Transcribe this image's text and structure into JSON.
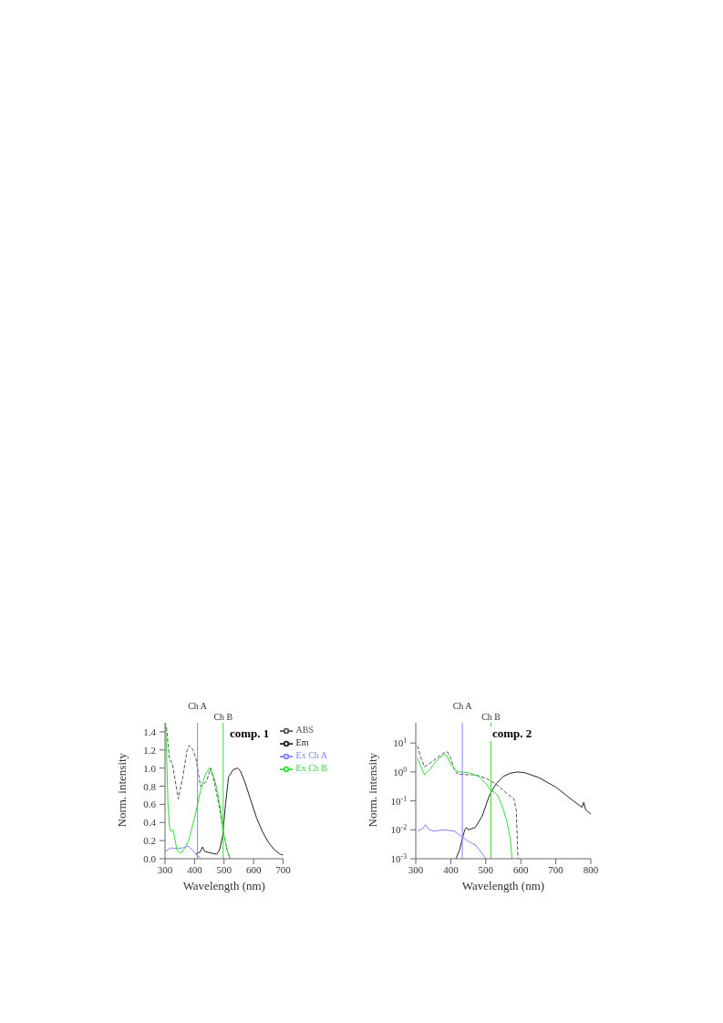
{
  "chart_data": [
    {
      "type": "line",
      "title": "comp. 1",
      "xlabel": "Wavelength (nm)",
      "ylabel": "Norm. intensity",
      "xlim": [
        300,
        700
      ],
      "xticks": [
        300,
        400,
        500,
        600,
        700
      ],
      "ylim": [
        0,
        1.5
      ],
      "yticks": [
        {
          "value": 0,
          "label": "0.0"
        },
        0.2,
        0.4,
        0.6,
        0.8,
        {
          "value": 1,
          "label": "1.0"
        },
        1.2,
        1.4
      ],
      "grid": false,
      "legend": "top right",
      "marker": "none",
      "series": [
        {
          "name": "ABS",
          "color": "#555555",
          "line_style": "dashed",
          "x": [
            305,
            315,
            325,
            345,
            360,
            375,
            382,
            395,
            405,
            420,
            440,
            455,
            470,
            485,
            497,
            510,
            520
          ],
          "values": [
            1.45,
            1.1,
            1.05,
            0.66,
            0.9,
            1.2,
            1.25,
            1.2,
            1.1,
            0.8,
            0.85,
            1.0,
            0.8,
            0.55,
            0.3,
            0.1,
            0
          ]
        },
        {
          "name": "Em",
          "color": "#222222",
          "line_style": "solid",
          "x": [
            405,
            420,
            427,
            435,
            460,
            475,
            485,
            495,
            505,
            515,
            530,
            545,
            555,
            570,
            590,
            610,
            630,
            650,
            670,
            690,
            700
          ],
          "values": [
            0.05,
            0.08,
            0.13,
            0.08,
            0.06,
            0.05,
            0.1,
            0.25,
            0.6,
            0.9,
            0.98,
            1.0,
            0.97,
            0.85,
            0.65,
            0.45,
            0.3,
            0.18,
            0.1,
            0.05,
            0.04
          ]
        },
        {
          "name": "Ex Ch A",
          "color": "#8080ff",
          "line_style": "solid",
          "x": [
            300,
            310,
            320,
            340,
            360,
            378,
            385,
            400,
            410,
            420
          ],
          "values": [
            0.08,
            0.1,
            0.12,
            0.11,
            0.12,
            0.14,
            0.12,
            0.07,
            0.03,
            0.01
          ]
        },
        {
          "name": "Ex Ch B",
          "color": "#33dd33",
          "line_style": "solid",
          "x": [
            302,
            305,
            310,
            315,
            320,
            326,
            330,
            340,
            350,
            360,
            380,
            400,
            420,
            435,
            450,
            460,
            470,
            480,
            490,
            500,
            510,
            520
          ],
          "values": [
            1.5,
            1.2,
            0.6,
            0.35,
            0.3,
            0.32,
            0.28,
            0.1,
            0.06,
            0.08,
            0.2,
            0.45,
            0.75,
            0.92,
            1.0,
            0.95,
            0.85,
            0.7,
            0.5,
            0.25,
            0.1,
            0.0
          ]
        }
      ],
      "ref_lines": [
        {
          "axis": "x",
          "value": 410,
          "label": "Ch A",
          "color": "#8080ff"
        },
        {
          "axis": "x",
          "value": 497,
          "label": "Ch B",
          "color": "#33dd33"
        }
      ]
    },
    {
      "type": "line",
      "title": "comp. 2",
      "xlabel": "Wavelength (nm)",
      "ylabel": "Norm. intensity",
      "xlim": [
        300,
        800
      ],
      "xticks": [
        300,
        400,
        500,
        600,
        700,
        800
      ],
      "ylim": [
        0.001,
        50
      ],
      "log": "y",
      "yticks": [
        {
          "value": 0.001,
          "label": "10$^{-3}$"
        },
        {
          "value": 0.01,
          "label": "10$^{-2}$"
        },
        {
          "value": 0.1,
          "label": "10$^{-1}$"
        },
        {
          "value": 1,
          "label": "10$^{0}$"
        },
        {
          "value": 10,
          "label": "10$^{1}$"
        }
      ],
      "grid": false,
      "legend": false,
      "marker": "none",
      "series": [
        {
          "color": "#555555",
          "line_style": "dashed",
          "x": [
            305,
            315,
            325,
            340,
            360,
            380,
            390,
            400,
            410,
            420,
            440,
            470,
            500,
            520,
            540,
            560,
            580,
            587,
            590,
            592
          ],
          "values": [
            8,
            3,
            1.5,
            2,
            3,
            4.5,
            5,
            3,
            1.2,
            0.85,
            0.8,
            0.8,
            0.6,
            0.45,
            0.3,
            0.18,
            0.12,
            0.05,
            0.005,
            0.001
          ]
        },
        {
          "color": "#222222",
          "line_style": "solid",
          "x": [
            415,
            425,
            435,
            440,
            445,
            450,
            470,
            490,
            510,
            530,
            550,
            570,
            590,
            610,
            650,
            700,
            750,
            775,
            780,
            785,
            800
          ],
          "values": [
            0.001,
            0.002,
            0.006,
            0.01,
            0.012,
            0.01,
            0.012,
            0.03,
            0.15,
            0.4,
            0.7,
            0.9,
            1.0,
            0.95,
            0.65,
            0.3,
            0.1,
            0.06,
            0.09,
            0.05,
            0.035
          ]
        },
        {
          "color": "#8080ff",
          "line_style": "solid",
          "x": [
            305,
            320,
            328,
            335,
            350,
            380,
            410,
            430,
            450,
            470,
            490,
            500
          ],
          "values": [
            0.009,
            0.011,
            0.015,
            0.011,
            0.009,
            0.01,
            0.009,
            0.006,
            0.004,
            0.003,
            0.0015,
            0.001
          ]
        },
        {
          "color": "#33dd33",
          "line_style": "solid",
          "x": [
            305,
            315,
            325,
            340,
            360,
            380,
            390,
            400,
            420,
            450,
            480,
            500,
            515,
            525,
            535,
            550,
            560,
            570,
            575
          ],
          "values": [
            3,
            1.5,
            0.8,
            1.2,
            2.5,
            4,
            3.5,
            1.8,
            1.0,
            0.95,
            0.7,
            0.4,
            0.22,
            0.2,
            0.15,
            0.05,
            0.02,
            0.005,
            0.001
          ]
        }
      ],
      "ref_lines": [
        {
          "axis": "x",
          "value": 433,
          "label": "Ch A",
          "color": "#8080ff"
        },
        {
          "axis": "x",
          "value": 515,
          "label": "Ch B",
          "color": "#33dd33"
        }
      ]
    }
  ]
}
